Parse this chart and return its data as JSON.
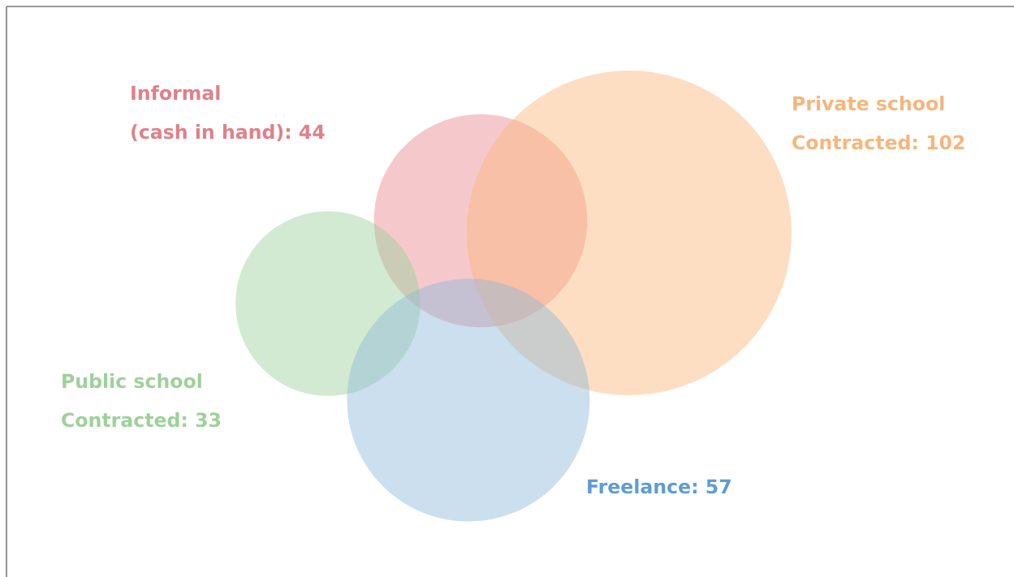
{
  "chart_data": {
    "type": "other",
    "categories": [
      "Informal\n(cash in hand)",
      "Private school\nContracted",
      "Public school\nContracted",
      "Freelance"
    ],
    "values": [
      44,
      102,
      33,
      57
    ],
    "colors": [
      "#e8888f",
      "#fbb57a",
      "#98d09a",
      "#8fb8da"
    ],
    "value_labels": [
      ": 44",
      ": 102",
      ": 33",
      ": 57"
    ]
  }
}
